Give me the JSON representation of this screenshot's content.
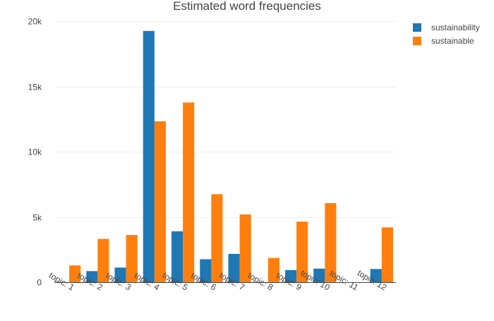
{
  "chart_data": {
    "type": "bar",
    "title": "Estimated word frequencies",
    "xlabel": "",
    "ylabel": "",
    "categories": [
      "topic: 1",
      "topic: 2",
      "topic: 3",
      "topic: 4",
      "topic: 5",
      "topic: 6",
      "topic: 7",
      "topic: 8",
      "topic: 9",
      "topic: 10",
      "topic: 11",
      "topic: 12"
    ],
    "series": [
      {
        "name": "sustainability",
        "color": "#1f77b4",
        "values": [
          0,
          850,
          1120,
          19250,
          3900,
          1760,
          2170,
          0,
          930,
          1040,
          0,
          1010
        ]
      },
      {
        "name": "sustainable",
        "color": "#ff7f0e",
        "values": [
          1290,
          3320,
          3620,
          12330,
          13770,
          6740,
          5190,
          1860,
          4640,
          6060,
          0,
          4200
        ]
      }
    ],
    "ylim": [
      0,
      20000
    ],
    "yticks": [
      {
        "value": 0,
        "label": "0"
      },
      {
        "value": 5000,
        "label": "5k"
      },
      {
        "value": 10000,
        "label": "10k"
      },
      {
        "value": 15000,
        "label": "15k"
      },
      {
        "value": 20000,
        "label": "20k"
      }
    ],
    "grid": true,
    "legend_position": "top-right"
  }
}
